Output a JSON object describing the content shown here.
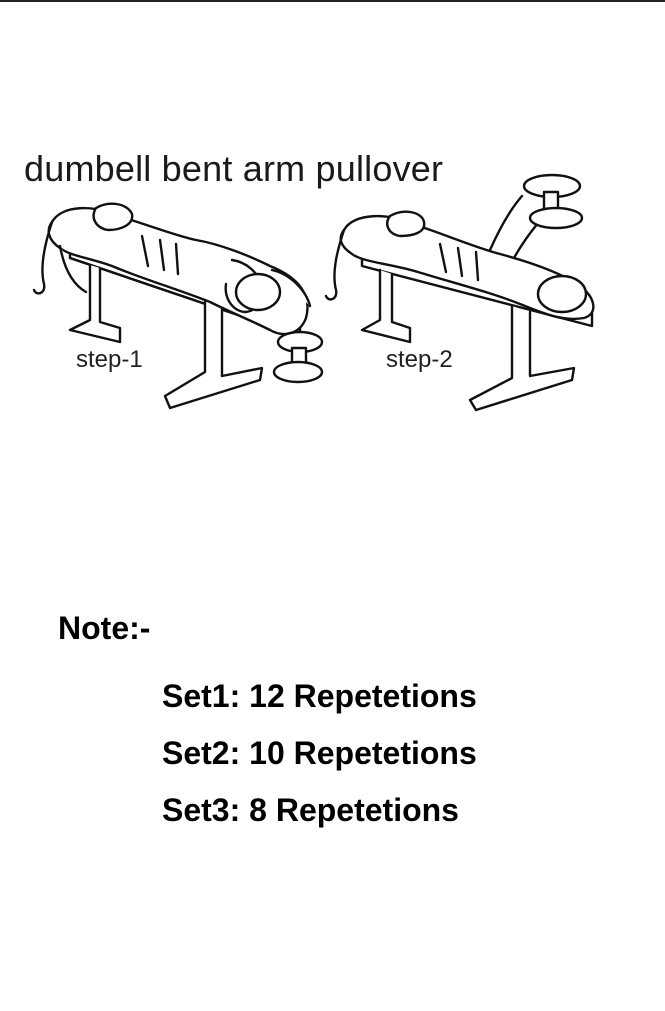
{
  "exercise": {
    "title": "dumbell bent arm pullover",
    "step1_label": "step-1",
    "step2_label": "step-2"
  },
  "note": {
    "heading": "Note:-",
    "sets": [
      "Set1: 12 Repetetions",
      "Set2: 10 Repetetions",
      "Set3: 8 Repetetions"
    ]
  }
}
